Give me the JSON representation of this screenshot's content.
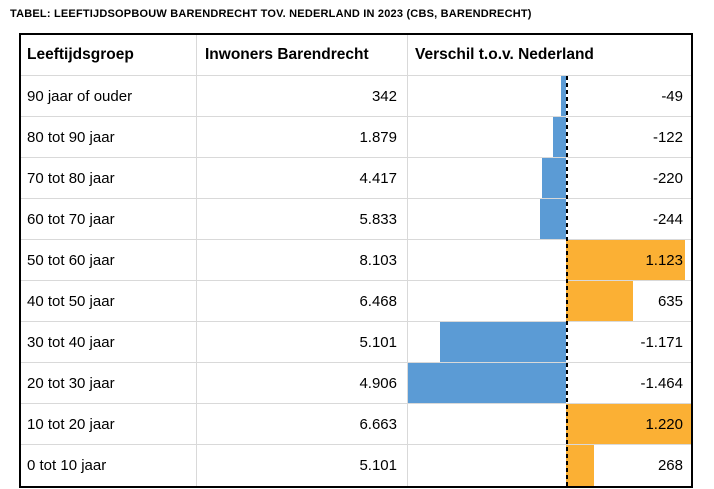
{
  "caption": "TABEL: LEEFTIJDSOPBOUW BARENDRECHT TOV. NEDERLAND IN 2023 (CBS, BARENDRECHT)",
  "chart_data": {
    "type": "table",
    "title": "TABEL: LEEFTIJDSOPBOUW BARENDRECHT TOV. NEDERLAND IN 2023 (CBS, BARENDRECHT)",
    "columns": [
      "Leeftijdsgroep",
      "Inwoners Barendrecht",
      "Verschil t.o.v. Nederland"
    ],
    "rows": [
      {
        "leeftijdsgroep": "90 jaar of ouder",
        "inwoners": "342",
        "inwoners_value": 342,
        "verschil": "-49",
        "verschil_value": -49
      },
      {
        "leeftijdsgroep": "80 tot 90 jaar",
        "inwoners": "1.879",
        "inwoners_value": 1879,
        "verschil": "-122",
        "verschil_value": -122
      },
      {
        "leeftijdsgroep": "70 tot 80 jaar",
        "inwoners": "4.417",
        "inwoners_value": 4417,
        "verschil": "-220",
        "verschil_value": -220
      },
      {
        "leeftijdsgroep": "60 tot 70 jaar",
        "inwoners": "5.833",
        "inwoners_value": 5833,
        "verschil": "-244",
        "verschil_value": -244
      },
      {
        "leeftijdsgroep": "50 tot 60 jaar",
        "inwoners": "8.103",
        "inwoners_value": 8103,
        "verschil": "1.123",
        "verschil_value": 1123
      },
      {
        "leeftijdsgroep": "40 tot 50 jaar",
        "inwoners": "6.468",
        "inwoners_value": 6468,
        "verschil": "635",
        "verschil_value": 635
      },
      {
        "leeftijdsgroep": "30 tot 40 jaar",
        "inwoners": "5.101",
        "inwoners_value": 5101,
        "verschil": "-1.171",
        "verschil_value": -1171
      },
      {
        "leeftijdsgroep": "20 tot 30 jaar",
        "inwoners": "4.906",
        "inwoners_value": 4906,
        "verschil": "-1.464",
        "verschil_value": -1464
      },
      {
        "leeftijdsgroep": "10 tot 20 jaar",
        "inwoners": "6.663",
        "inwoners_value": 6663,
        "verschil": "1.220",
        "verschil_value": 1220
      },
      {
        "leeftijdsgroep": "0 tot 10 jaar",
        "inwoners": "5.101",
        "inwoners_value": 5101,
        "verschil": "268",
        "verschil_value": 268
      }
    ],
    "bar_axis": {
      "zero_line_style": "dashed",
      "negative_side": "left",
      "positive_side": "right"
    },
    "colors": {
      "negative_bar": "#5b9bd5",
      "positive_bar": "#fbb034",
      "axis_line": "#000000",
      "grid_line": "#d9d9d9",
      "table_border": "#000000",
      "text": "#000000"
    }
  }
}
